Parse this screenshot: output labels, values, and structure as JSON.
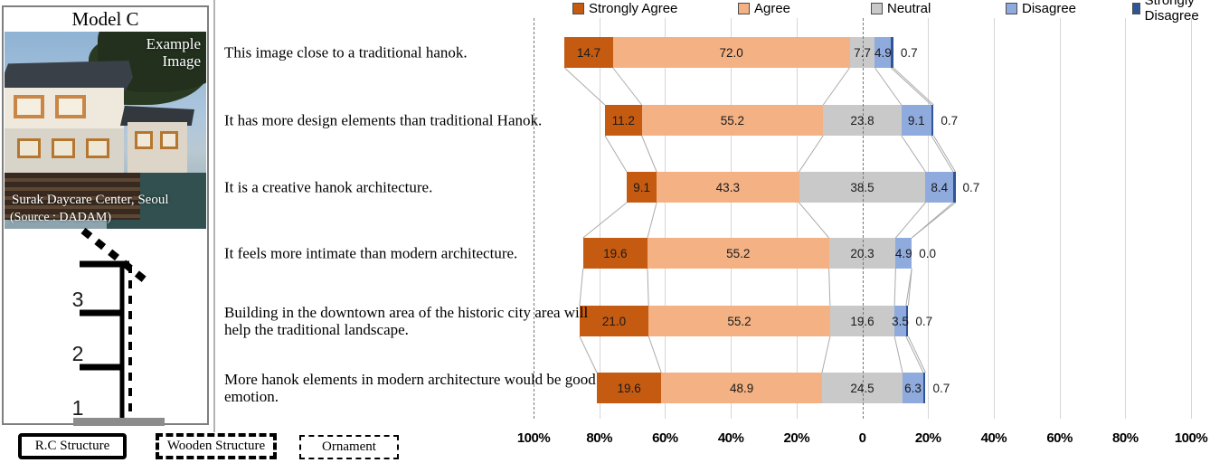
{
  "panel": {
    "title": "Model C",
    "photo": {
      "overlay_line1": "Example",
      "overlay_line2": "Image",
      "caption": "Surak Daycare Center, Seoul",
      "source": "(Source : DADAM)"
    },
    "diagram": {
      "floors": [
        "3",
        "2",
        "1"
      ]
    },
    "structure_legend": [
      {
        "label": "R.C Structure",
        "line_style": "solid-thick"
      },
      {
        "label": "Wooden Structure",
        "line_style": "dashed-thick"
      },
      {
        "label": "Ornament",
        "line_style": "dashed-thin"
      }
    ]
  },
  "chart_data": {
    "type": "bar",
    "subtype": "diverging-stacked-likert",
    "title": "",
    "legend_position": "top",
    "legend": [
      "Strongly Agree",
      "Agree",
      "Neutral",
      "Disagree",
      "Strongly Disagree"
    ],
    "colors": {
      "strongly_agree": "#C55A11",
      "agree": "#F4B183",
      "neutral": "#C9C9C9",
      "disagree": "#8FAADC",
      "strongly_disagree": "#2F5597"
    },
    "categories": [
      "This image close to a traditional hanok.",
      "It has more design elements than traditional Hanok.",
      "It is a creative hanok architecture.",
      "It feels more intimate than modern architecture.",
      "Building in the downtown area of the historic city area will help the traditional landscape.",
      "More hanok elements in modern architecture would be good emotion."
    ],
    "series": [
      {
        "name": "Strongly Agree",
        "values": [
          14.7,
          11.2,
          9.1,
          19.6,
          21.0,
          19.6
        ]
      },
      {
        "name": "Agree",
        "values": [
          72.0,
          55.2,
          43.3,
          55.2,
          55.2,
          48.9
        ]
      },
      {
        "name": "Neutral",
        "values": [
          7.7,
          23.8,
          38.5,
          20.3,
          19.6,
          24.5
        ]
      },
      {
        "name": "Disagree",
        "values": [
          4.9,
          9.1,
          8.4,
          4.9,
          3.5,
          6.3
        ]
      },
      {
        "name": "Strongly Disagree",
        "values": [
          0.7,
          0.7,
          0.7,
          0.0,
          0.7,
          0.7
        ]
      }
    ],
    "axis": {
      "tick_labels": [
        "100%",
        "80%",
        "60%",
        "40%",
        "20%",
        "0",
        "20%",
        "40%",
        "60%",
        "80%",
        "100%"
      ],
      "range_pct": [
        -100,
        100
      ],
      "neutral_centered_on_zero": true,
      "grid": true,
      "dashed_lines_at": [
        "-100%",
        "0"
      ]
    }
  }
}
